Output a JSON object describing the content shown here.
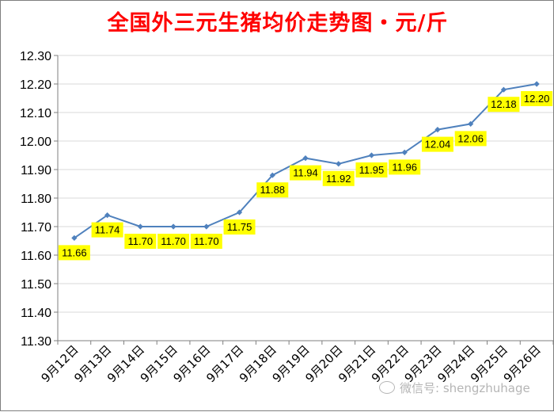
{
  "chart_data": {
    "type": "line",
    "title": "全国外三元生猪均价走势图・元/斤",
    "categories": [
      "9月12日",
      "9月13日",
      "9月14日",
      "9月15日",
      "9月16日",
      "9月17日",
      "9月18日",
      "9月19日",
      "9月20日",
      "9月21日",
      "9月22日",
      "9月23日",
      "9月24日",
      "9月25日",
      "9月26日"
    ],
    "values": [
      11.66,
      11.74,
      11.7,
      11.7,
      11.7,
      11.75,
      11.88,
      11.94,
      11.92,
      11.95,
      11.96,
      12.04,
      12.06,
      12.18,
      12.2
    ],
    "data_labels": [
      "11.66",
      "11.74",
      "11.70",
      "11.70",
      "11.70",
      "11.75",
      "11.88",
      "11.94",
      "11.92",
      "11.95",
      "11.96",
      "12.04",
      "12.06",
      "12.18",
      "12.20"
    ],
    "y_ticks": [
      "11.30",
      "11.40",
      "11.50",
      "11.60",
      "11.70",
      "11.80",
      "11.90",
      "12.00",
      "12.10",
      "12.20",
      "12.30"
    ],
    "ylim": [
      11.3,
      12.3
    ],
    "xlabel": "",
    "ylabel": "",
    "grid": true,
    "line_color": "#4f81bd",
    "label_bg_color": "#ffff00",
    "grid_color": "#d9d9d9"
  },
  "watermark": {
    "text": "微信号: shengzhuhage",
    "icon": "wechat-icon"
  }
}
